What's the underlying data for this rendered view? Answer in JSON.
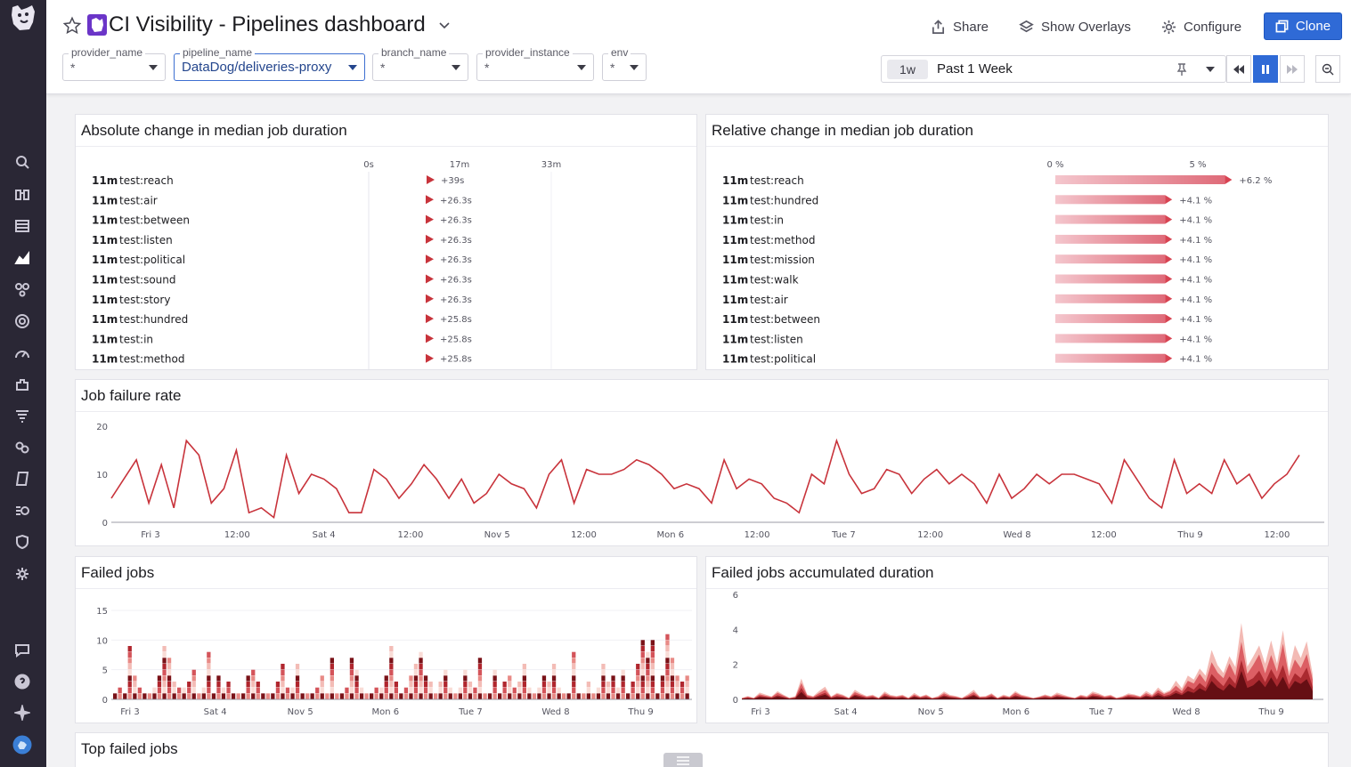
{
  "header": {
    "title": "CI Visibility - Pipelines dashboard",
    "share_label": "Share",
    "overlays_label": "Show Overlays",
    "configure_label": "Configure",
    "clone_label": "Clone"
  },
  "template_vars": [
    {
      "label": "provider_name",
      "value": "*"
    },
    {
      "label": "pipeline_name",
      "value": "DataDog/deliveries-proxy"
    },
    {
      "label": "branch_name",
      "value": "*"
    },
    {
      "label": "provider_instance",
      "value": "*"
    },
    {
      "label": "env",
      "value": "*"
    }
  ],
  "timeframe": {
    "short": "1w",
    "label": "Past 1 Week"
  },
  "icons": {
    "nav": [
      "search-icon",
      "binoculars-icon",
      "list-icon",
      "dashboard-icon",
      "nodes-icon",
      "target-icon",
      "gauge-icon",
      "puzzle-icon",
      "logs-icon",
      "link-icon",
      "notebook-icon",
      "workflow-icon",
      "shield-icon",
      "gear-icon",
      "chat-icon",
      "help-icon",
      "sparkle-icon",
      "avatar-icon"
    ]
  },
  "colors": {
    "accent": "#2f6ad6",
    "nav_bg": "#2a2735",
    "series_red": "#c8333b",
    "bar_pink": "#e89aa5"
  },
  "widgets": {
    "absolute_change": {
      "title": "Absolute change in median job duration"
    },
    "relative_change": {
      "title": "Relative change in median job duration"
    },
    "failure_rate": {
      "title": "Job failure rate"
    },
    "failed_jobs": {
      "title": "Failed jobs"
    },
    "failed_duration": {
      "title": "Failed jobs accumulated duration"
    },
    "top_failed": {
      "title": "Top failed jobs"
    }
  },
  "chart_data": [
    {
      "type": "table",
      "title": "Absolute change in median job duration",
      "column_ticks": [
        "0s",
        "17m",
        "33m"
      ],
      "rows": [
        {
          "duration": "11m",
          "name": "test:reach",
          "change": "+39s",
          "seconds": 39
        },
        {
          "duration": "11m",
          "name": "test:air",
          "change": "+26.3s",
          "seconds": 26.3
        },
        {
          "duration": "11m",
          "name": "test:between",
          "change": "+26.3s",
          "seconds": 26.3
        },
        {
          "duration": "11m",
          "name": "test:listen",
          "change": "+26.3s",
          "seconds": 26.3
        },
        {
          "duration": "11m",
          "name": "test:political",
          "change": "+26.3s",
          "seconds": 26.3
        },
        {
          "duration": "11m",
          "name": "test:sound",
          "change": "+26.3s",
          "seconds": 26.3
        },
        {
          "duration": "11m",
          "name": "test:story",
          "change": "+26.3s",
          "seconds": 26.3
        },
        {
          "duration": "11m",
          "name": "test:hundred",
          "change": "+25.8s",
          "seconds": 25.8
        },
        {
          "duration": "11m",
          "name": "test:in",
          "change": "+25.8s",
          "seconds": 25.8
        },
        {
          "duration": "11m",
          "name": "test:method",
          "change": "+25.8s",
          "seconds": 25.8
        }
      ]
    },
    {
      "type": "bar",
      "title": "Relative change in median job duration",
      "column_ticks": [
        "0 %",
        "5 %"
      ],
      "rows": [
        {
          "duration": "11m",
          "name": "test:reach",
          "change": "+6.2 %",
          "percent": 6.2
        },
        {
          "duration": "11m",
          "name": "test:hundred",
          "change": "+4.1 %",
          "percent": 4.1
        },
        {
          "duration": "11m",
          "name": "test:in",
          "change": "+4.1 %",
          "percent": 4.1
        },
        {
          "duration": "11m",
          "name": "test:method",
          "change": "+4.1 %",
          "percent": 4.1
        },
        {
          "duration": "11m",
          "name": "test:mission",
          "change": "+4.1 %",
          "percent": 4.1
        },
        {
          "duration": "11m",
          "name": "test:walk",
          "change": "+4.1 %",
          "percent": 4.1
        },
        {
          "duration": "11m",
          "name": "test:air",
          "change": "+4.1 %",
          "percent": 4.1
        },
        {
          "duration": "11m",
          "name": "test:between",
          "change": "+4.1 %",
          "percent": 4.1
        },
        {
          "duration": "11m",
          "name": "test:listen",
          "change": "+4.1 %",
          "percent": 4.1
        },
        {
          "duration": "11m",
          "name": "test:political",
          "change": "+4.1 %",
          "percent": 4.1
        }
      ]
    },
    {
      "type": "line",
      "title": "Job failure rate",
      "ylim": [
        0,
        20
      ],
      "yticks": [
        0,
        10,
        20
      ],
      "xticks": [
        "Fri 3",
        "12:00",
        "Sat 4",
        "12:00",
        "Nov 5",
        "12:00",
        "Mon 6",
        "12:00",
        "Tue 7",
        "12:00",
        "Wed 8",
        "12:00",
        "Thu 9",
        "12:00"
      ],
      "values": [
        5,
        9,
        13,
        4,
        12,
        3,
        17,
        14,
        4,
        7,
        15,
        2,
        3,
        1,
        14,
        6,
        10,
        9,
        7,
        2,
        2,
        11,
        9,
        5,
        8,
        12,
        9,
        5,
        9,
        4,
        6,
        10,
        8,
        7,
        3,
        10,
        13,
        4,
        11,
        10,
        10,
        11,
        13,
        12,
        10,
        7,
        8,
        7,
        4,
        13,
        7,
        9,
        8,
        5,
        4,
        2,
        10,
        8,
        17,
        10,
        6,
        7,
        11,
        10,
        6,
        9,
        11,
        8,
        10,
        8,
        4,
        10,
        5,
        7,
        10,
        8,
        10,
        10,
        9,
        8,
        4,
        13,
        9,
        5,
        3,
        13,
        6,
        8,
        6,
        13,
        8,
        10,
        5,
        8,
        10,
        14
      ],
      "color": "#c8333b"
    },
    {
      "type": "bar",
      "title": "Failed jobs",
      "ylim": [
        0,
        15
      ],
      "yticks": [
        0,
        5,
        10,
        15
      ],
      "xticks": [
        "Fri 3",
        "Sat 4",
        "Nov 5",
        "Mon 6",
        "Tue 7",
        "Wed 8",
        "Thu 9"
      ],
      "values": [
        1,
        2,
        1,
        9,
        4,
        2,
        1,
        1,
        2,
        4,
        9,
        7,
        3,
        2,
        2,
        3,
        5,
        1,
        2,
        8,
        1,
        4,
        2,
        3,
        1,
        1,
        1,
        4,
        5,
        3,
        1,
        1,
        1,
        3,
        6,
        2,
        2,
        6,
        1,
        1,
        1,
        2,
        4,
        1,
        7,
        1,
        1,
        2,
        7,
        5,
        2,
        1,
        1,
        2,
        2,
        4,
        9,
        3,
        1,
        2,
        4,
        6,
        8,
        4,
        3,
        1,
        3,
        5,
        2,
        1,
        2,
        5,
        3,
        2,
        7,
        1,
        1,
        5,
        1,
        3,
        4,
        2,
        3,
        6,
        2,
        1,
        2,
        4,
        3,
        6,
        2,
        1,
        1,
        8,
        1,
        1,
        3,
        1,
        2,
        6,
        3,
        4,
        2,
        5,
        1,
        3,
        6,
        10,
        8,
        10,
        1,
        4,
        11,
        7,
        4,
        3,
        4
      ],
      "color": "#c23a3f"
    },
    {
      "type": "area",
      "title": "Failed jobs accumulated duration",
      "ylim": [
        0,
        6
      ],
      "yticks": [
        0,
        2,
        4,
        6
      ],
      "xticks": [
        "Fri 3",
        "Sat 4",
        "Nov 5",
        "Mon 6",
        "Tue 7",
        "Wed 8",
        "Thu 9"
      ],
      "values": [
        0.1,
        0.2,
        0.1,
        0.4,
        0.3,
        0.2,
        0.5,
        0.3,
        0.1,
        0.2,
        1.4,
        0.3,
        0.2,
        0.5,
        0.8,
        0.2,
        0.4,
        0.3,
        0.1,
        0.6,
        0.4,
        0.2,
        0.3,
        0.1,
        0.5,
        0.3,
        0.2,
        0.3,
        0.1,
        0.4,
        0.2,
        0.3,
        0.1,
        0.2,
        0.5,
        0.3,
        0.2,
        0.1,
        0.3,
        0.6,
        0.2,
        0.2,
        0.4,
        0.1,
        0.3,
        0.2,
        0.5,
        0.3,
        0.2,
        0.1,
        0.2,
        0.3,
        0.2,
        0.4,
        0.3,
        0.2,
        0.1,
        0.3,
        0.2,
        0.5,
        0.4,
        0.2,
        0.3,
        0.1,
        0.2,
        0.4,
        0.3,
        0.2,
        0.5,
        0.3,
        0.8,
        0.4,
        0.6,
        1.1,
        0.7,
        1.6,
        1.2,
        2.0,
        1.4,
        3.1,
        2.3,
        1.6,
        2.8,
        1.9,
        4.8,
        2.2,
        2.6,
        3.5,
        2.1,
        3.7,
        2.4,
        4.2,
        1.8,
        3.2,
        2.6,
        3.9,
        1.5
      ],
      "color": "#a4252a"
    }
  ]
}
